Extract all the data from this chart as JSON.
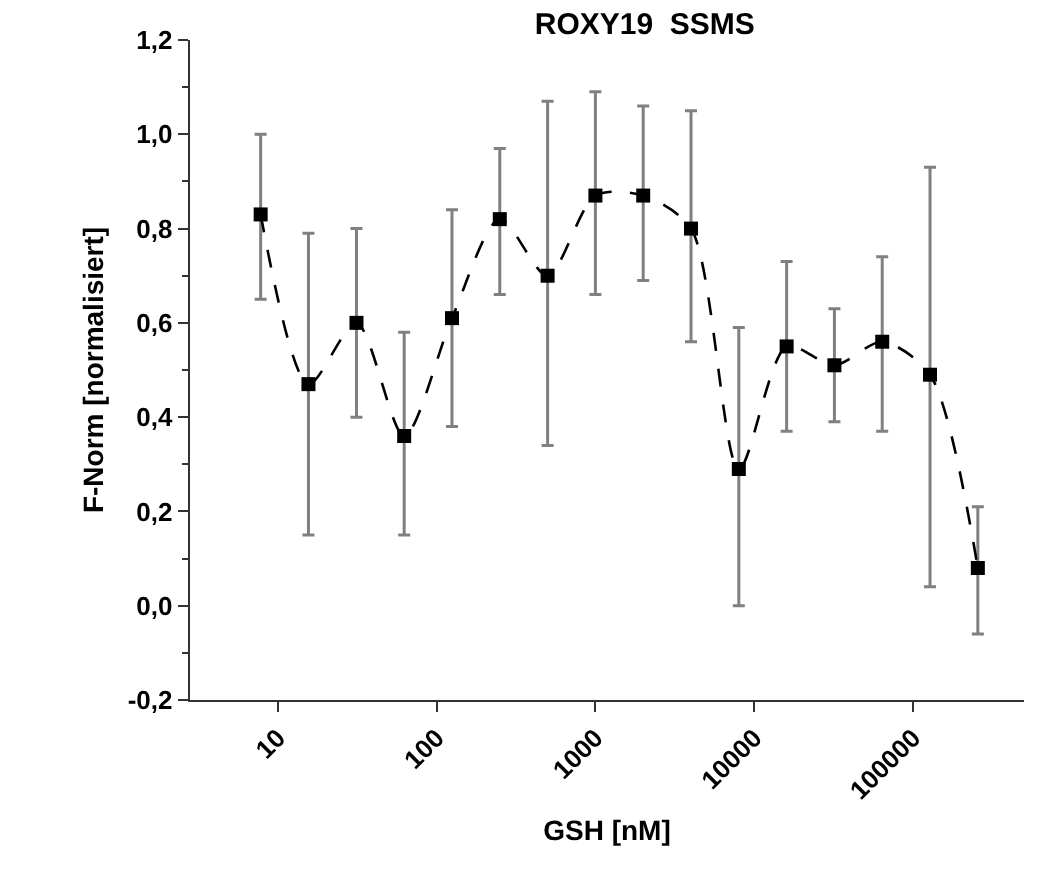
{
  "chart_data": {
    "type": "line",
    "title": "ROXY19  SSMS",
    "xlabel": "GSH [nM]",
    "ylabel": "F-Norm [normalisiert]",
    "log": "x",
    "grid": false,
    "marker": "square",
    "line_style": "dashed",
    "xlim": [
      2.8,
      500000
    ],
    "xticks": [
      10,
      100,
      1000,
      10000,
      100000
    ],
    "ylim": [
      -0.2,
      1.2
    ],
    "yticks": [
      {
        "value": -0.2,
        "label": "-0,2"
      },
      {
        "value": 0,
        "label": "0,0"
      },
      {
        "value": 0.2,
        "label": "0,2"
      },
      {
        "value": 0.4,
        "label": "0,4"
      },
      {
        "value": 0.6,
        "label": "0,6"
      },
      {
        "value": 0.8,
        "label": "0,8"
      },
      {
        "value": 1,
        "label": "1,0"
      },
      {
        "value": 1.2,
        "label": "1,2"
      }
    ],
    "series": [
      {
        "color": "#000000",
        "x": [
          7.8,
          15.6,
          31.3,
          62.5,
          125,
          250,
          500,
          1000,
          2000,
          4000,
          8000,
          16000,
          32000,
          64000,
          128000,
          256000
        ],
        "values": [
          0.83,
          0.47,
          0.6,
          0.36,
          0.61,
          0.82,
          0.7,
          0.87,
          0.87,
          0.8,
          0.29,
          0.55,
          0.51,
          0.56,
          0.49,
          0.08
        ],
        "errors": [
          [
            0.65,
            1.0
          ],
          [
            0.15,
            0.79
          ],
          [
            0.4,
            0.8
          ],
          [
            0.15,
            0.58
          ],
          [
            0.38,
            0.84
          ],
          [
            0.66,
            0.97
          ],
          [
            0.34,
            1.07
          ],
          [
            0.66,
            1.09
          ],
          [
            0.69,
            1.06
          ],
          [
            0.56,
            1.05
          ],
          [
            0.0,
            0.59
          ],
          [
            0.37,
            0.73
          ],
          [
            0.39,
            0.63
          ],
          [
            0.37,
            0.74
          ],
          [
            0.04,
            0.93
          ],
          [
            -0.06,
            0.21
          ]
        ]
      }
    ]
  }
}
